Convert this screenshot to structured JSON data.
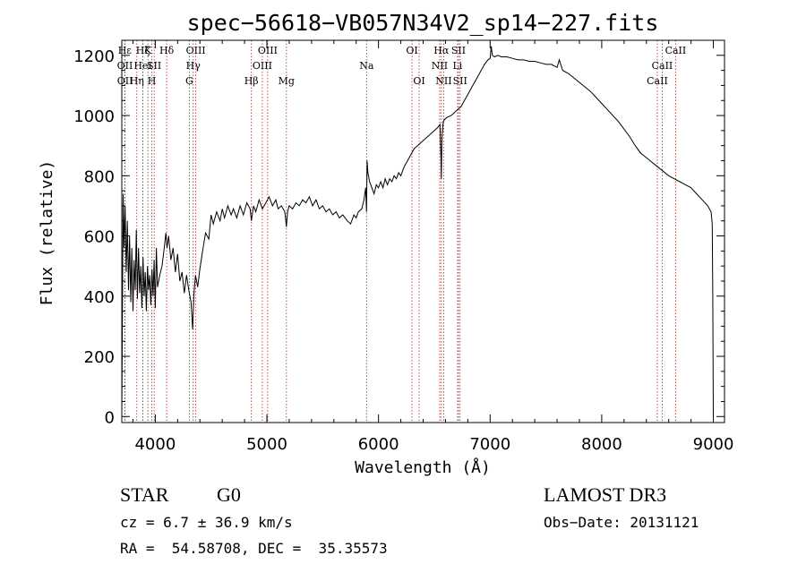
{
  "chart_data": {
    "type": "line",
    "title": "spec−56618−VB057N34V2_sp14−227.fits",
    "xlabel": "Wavelength (Å)",
    "ylabel": "Flux (relative)",
    "xlim": [
      3700,
      9100
    ],
    "ylim": [
      -20,
      1250
    ],
    "xticks": [
      4000,
      5000,
      6000,
      7000,
      8000,
      9000
    ],
    "yticks": [
      0,
      200,
      400,
      600,
      800,
      1000,
      1200
    ],
    "grid": false,
    "line_color": "#000000",
    "marker_color": "#b22222",
    "series": [
      {
        "values": [
          [
            3700,
            0
          ],
          [
            3705,
            300
          ],
          [
            3712,
            740
          ],
          [
            3720,
            560
          ],
          [
            3730,
            700
          ],
          [
            3740,
            480
          ],
          [
            3750,
            650
          ],
          [
            3760,
            420
          ],
          [
            3770,
            600
          ],
          [
            3780,
            380
          ],
          [
            3790,
            560
          ],
          [
            3800,
            350
          ],
          [
            3810,
            520
          ],
          [
            3820,
            420
          ],
          [
            3830,
            620
          ],
          [
            3840,
            390
          ],
          [
            3850,
            560
          ],
          [
            3860,
            410
          ],
          [
            3870,
            500
          ],
          [
            3880,
            360
          ],
          [
            3890,
            530
          ],
          [
            3900,
            400
          ],
          [
            3910,
            480
          ],
          [
            3920,
            350
          ],
          [
            3930,
            500
          ],
          [
            3940,
            420
          ],
          [
            3950,
            470
          ],
          [
            3960,
            370
          ],
          [
            3970,
            490
          ],
          [
            3980,
            400
          ],
          [
            3990,
            520
          ],
          [
            4000,
            360
          ],
          [
            4010,
            560
          ],
          [
            4020,
            430
          ],
          [
            4040,
            470
          ],
          [
            4060,
            500
          ],
          [
            4080,
            560
          ],
          [
            4095,
            610
          ],
          [
            4105,
            560
          ],
          [
            4120,
            600
          ],
          [
            4140,
            520
          ],
          [
            4160,
            560
          ],
          [
            4180,
            480
          ],
          [
            4200,
            540
          ],
          [
            4220,
            450
          ],
          [
            4240,
            480
          ],
          [
            4260,
            410
          ],
          [
            4280,
            470
          ],
          [
            4300,
            420
          ],
          [
            4320,
            380
          ],
          [
            4335,
            290
          ],
          [
            4345,
            400
          ],
          [
            4360,
            470
          ],
          [
            4380,
            430
          ],
          [
            4400,
            490
          ],
          [
            4420,
            540
          ],
          [
            4450,
            610
          ],
          [
            4480,
            590
          ],
          [
            4500,
            670
          ],
          [
            4520,
            640
          ],
          [
            4550,
            680
          ],
          [
            4580,
            650
          ],
          [
            4600,
            690
          ],
          [
            4620,
            660
          ],
          [
            4650,
            700
          ],
          [
            4680,
            670
          ],
          [
            4700,
            690
          ],
          [
            4730,
            660
          ],
          [
            4760,
            700
          ],
          [
            4790,
            670
          ],
          [
            4820,
            710
          ],
          [
            4850,
            690
          ],
          [
            4861,
            650
          ],
          [
            4880,
            700
          ],
          [
            4900,
            680
          ],
          [
            4930,
            720
          ],
          [
            4960,
            690
          ],
          [
            4990,
            710
          ],
          [
            5020,
            730
          ],
          [
            5050,
            700
          ],
          [
            5080,
            720
          ],
          [
            5100,
            690
          ],
          [
            5130,
            700
          ],
          [
            5160,
            680
          ],
          [
            5175,
            630
          ],
          [
            5185,
            680
          ],
          [
            5200,
            700
          ],
          [
            5230,
            690
          ],
          [
            5260,
            710
          ],
          [
            5290,
            700
          ],
          [
            5320,
            720
          ],
          [
            5350,
            710
          ],
          [
            5380,
            730
          ],
          [
            5410,
            700
          ],
          [
            5440,
            720
          ],
          [
            5470,
            690
          ],
          [
            5500,
            700
          ],
          [
            5530,
            680
          ],
          [
            5560,
            690
          ],
          [
            5590,
            670
          ],
          [
            5620,
            680
          ],
          [
            5650,
            660
          ],
          [
            5680,
            670
          ],
          [
            5700,
            660
          ],
          [
            5720,
            650
          ],
          [
            5750,
            640
          ],
          [
            5780,
            670
          ],
          [
            5800,
            660
          ],
          [
            5820,
            680
          ],
          [
            5850,
            690
          ],
          [
            5870,
            720
          ],
          [
            5885,
            760
          ],
          [
            5893,
            680
          ],
          [
            5898,
            850
          ],
          [
            5905,
            810
          ],
          [
            5920,
            780
          ],
          [
            5940,
            760
          ],
          [
            5960,
            740
          ],
          [
            5980,
            770
          ],
          [
            6000,
            760
          ],
          [
            6020,
            780
          ],
          [
            6040,
            760
          ],
          [
            6060,
            790
          ],
          [
            6080,
            770
          ],
          [
            6100,
            790
          ],
          [
            6120,
            780
          ],
          [
            6140,
            800
          ],
          [
            6160,
            790
          ],
          [
            6180,
            810
          ],
          [
            6200,
            800
          ],
          [
            6230,
            830
          ],
          [
            6260,
            850
          ],
          [
            6290,
            870
          ],
          [
            6320,
            890
          ],
          [
            6350,
            900
          ],
          [
            6380,
            910
          ],
          [
            6410,
            920
          ],
          [
            6440,
            930
          ],
          [
            6470,
            940
          ],
          [
            6500,
            950
          ],
          [
            6530,
            960
          ],
          [
            6550,
            970
          ],
          [
            6560,
            860
          ],
          [
            6563,
            790
          ],
          [
            6568,
            920
          ],
          [
            6580,
            980
          ],
          [
            6600,
            990
          ],
          [
            6620,
            995
          ],
          [
            6650,
            1000
          ],
          [
            6680,
            1010
          ],
          [
            6710,
            1020
          ],
          [
            6740,
            1030
          ],
          [
            6770,
            1050
          ],
          [
            6800,
            1070
          ],
          [
            6830,
            1090
          ],
          [
            6860,
            1110
          ],
          [
            6890,
            1130
          ],
          [
            6920,
            1150
          ],
          [
            6950,
            1170
          ],
          [
            6980,
            1185
          ],
          [
            7000,
            1190
          ],
          [
            7010,
            1230
          ],
          [
            7020,
            1200
          ],
          [
            7040,
            1195
          ],
          [
            7070,
            1200
          ],
          [
            7100,
            1195
          ],
          [
            7150,
            1195
          ],
          [
            7200,
            1190
          ],
          [
            7250,
            1185
          ],
          [
            7300,
            1185
          ],
          [
            7350,
            1180
          ],
          [
            7400,
            1180
          ],
          [
            7450,
            1175
          ],
          [
            7500,
            1170
          ],
          [
            7550,
            1170
          ],
          [
            7600,
            1160
          ],
          [
            7620,
            1185
          ],
          [
            7650,
            1150
          ],
          [
            7700,
            1140
          ],
          [
            7750,
            1125
          ],
          [
            7800,
            1110
          ],
          [
            7850,
            1095
          ],
          [
            7900,
            1080
          ],
          [
            7950,
            1060
          ],
          [
            8000,
            1040
          ],
          [
            8050,
            1020
          ],
          [
            8100,
            1000
          ],
          [
            8150,
            980
          ],
          [
            8200,
            955
          ],
          [
            8250,
            930
          ],
          [
            8300,
            900
          ],
          [
            8350,
            875
          ],
          [
            8400,
            860
          ],
          [
            8450,
            845
          ],
          [
            8500,
            830
          ],
          [
            8550,
            815
          ],
          [
            8600,
            800
          ],
          [
            8650,
            790
          ],
          [
            8700,
            780
          ],
          [
            8750,
            770
          ],
          [
            8800,
            760
          ],
          [
            8850,
            740
          ],
          [
            8900,
            720
          ],
          [
            8950,
            700
          ],
          [
            8980,
            680
          ],
          [
            8990,
            640
          ],
          [
            8995,
            400
          ],
          [
            9000,
            0
          ]
        ]
      }
    ],
    "lines": [
      {
        "label": "Hε",
        "x": 3727,
        "row": 0
      },
      {
        "label": "OII",
        "x": 3728,
        "row": 1
      },
      {
        "label": "OII",
        "x": 3729,
        "row": 2
      },
      {
        "label": "Hη",
        "x": 3835,
        "row": 2
      },
      {
        "label": "Hζ",
        "x": 3889,
        "row": 0
      },
      {
        "label": "HeI",
        "x": 3889,
        "row": 1
      },
      {
        "label": "K",
        "x": 3934,
        "row": 0
      },
      {
        "label": "SII",
        "x": 3990,
        "row": 1
      },
      {
        "label": "H",
        "x": 3969,
        "row": 2
      },
      {
        "label": "Hδ",
        "x": 4102,
        "row": 0
      },
      {
        "label": "OIII",
        "x": 4363,
        "row": 0
      },
      {
        "label": "Hγ",
        "x": 4340,
        "row": 1
      },
      {
        "label": "G",
        "x": 4305,
        "row": 2
      },
      {
        "label": "Hβ",
        "x": 4861,
        "row": 2
      },
      {
        "label": "OIII",
        "x": 5007,
        "row": 0
      },
      {
        "label": "OIII",
        "x": 4959,
        "row": 1
      },
      {
        "label": "Mg",
        "x": 5175,
        "row": 2
      },
      {
        "label": "Na",
        "x": 5893,
        "row": 1
      },
      {
        "label": "OI",
        "x": 6300,
        "row": 0
      },
      {
        "label": "OI",
        "x": 6364,
        "row": 2
      },
      {
        "label": "Hα",
        "x": 6563,
        "row": 0
      },
      {
        "label": "SII",
        "x": 6717,
        "row": 0
      },
      {
        "label": "NII",
        "x": 6548,
        "row": 1
      },
      {
        "label": "Li",
        "x": 6708,
        "row": 1
      },
      {
        "label": "NII",
        "x": 6584,
        "row": 2
      },
      {
        "label": "SII",
        "x": 6731,
        "row": 2
      },
      {
        "label": "CaII",
        "x": 8662,
        "row": 0
      },
      {
        "label": "CaII",
        "x": 8542,
        "row": 1
      },
      {
        "label": "CaII",
        "x": 8498,
        "row": 2
      }
    ]
  },
  "info": {
    "class": "STAR",
    "subclass": "G0",
    "survey": "LAMOST DR3",
    "cz": "cz = 6.7 ± 36.9 km/s",
    "obs_date": "Obs−Date: 20131121",
    "coords": "RA =  54.58708, DEC =  35.35573"
  }
}
